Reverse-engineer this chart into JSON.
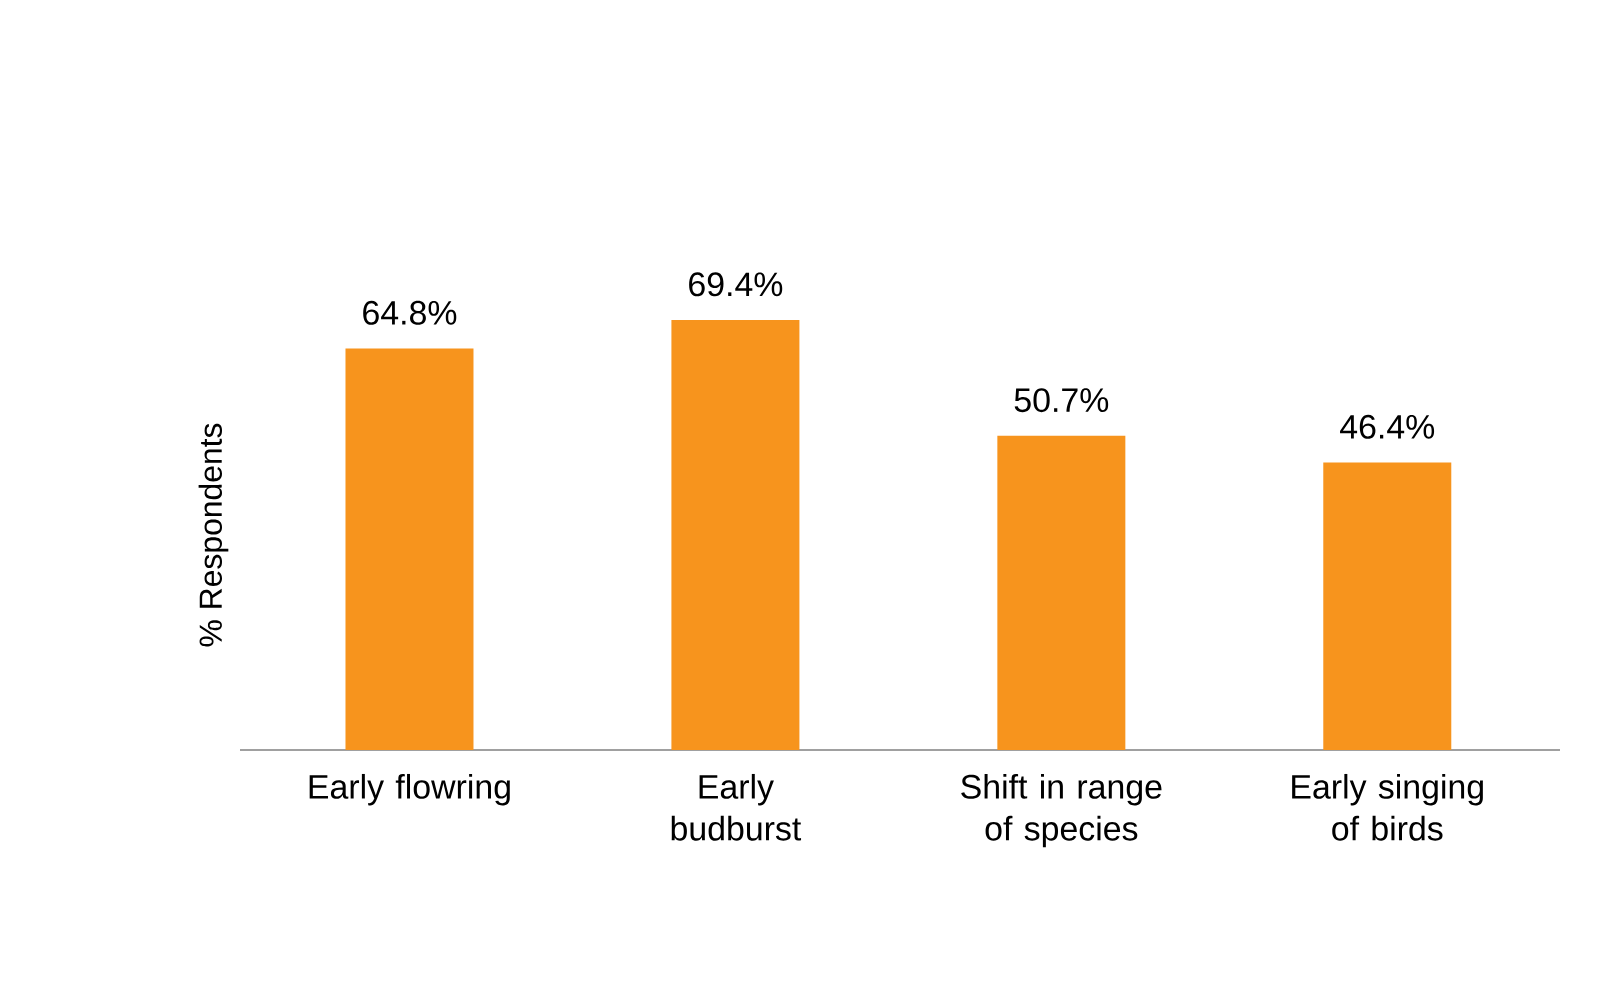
{
  "chart_data": {
    "type": "bar",
    "ylabel": "% Respondents",
    "categories": [
      "Early flowring",
      "Early budburst",
      "Shift in range of species",
      "Early singing of birds"
    ],
    "values": [
      64.8,
      69.4,
      50.7,
      46.4
    ],
    "value_labels": [
      "64.8%",
      "69.4%",
      "50.7%",
      "46.4%"
    ],
    "color": "#f7941d"
  }
}
